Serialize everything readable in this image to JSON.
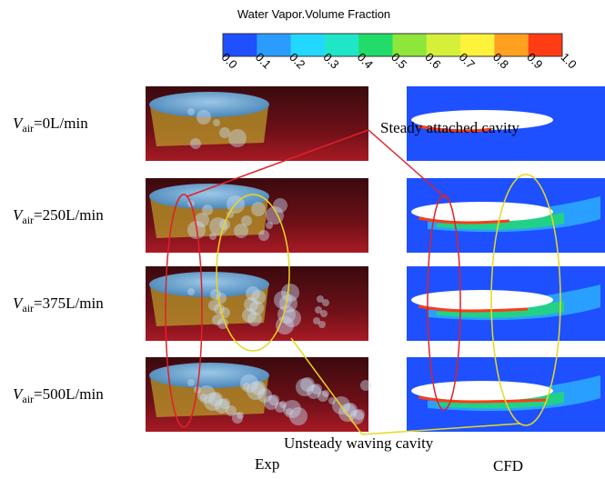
{
  "colorbar": {
    "title": "Water Vapor.Volume Fraction",
    "ticks": [
      "0.0",
      "0.1",
      "0.2",
      "0.3",
      "0.4",
      "0.5",
      "0.6",
      "0.7",
      "0.8",
      "0.9",
      "1.0"
    ],
    "colors": [
      "#1e50ff",
      "#2a9cff",
      "#22d8ff",
      "#20e6c8",
      "#22dc6a",
      "#8ee63a",
      "#d6f03a",
      "#fff23a",
      "#ffa020",
      "#ff3c14"
    ]
  },
  "rows": [
    {
      "symbol": "V",
      "subscript": "air",
      "value": "=0L/min"
    },
    {
      "symbol": "V",
      "subscript": "air",
      "value": "=250L/min"
    },
    {
      "symbol": "V",
      "subscript": "air",
      "value": "=375L/min"
    },
    {
      "symbol": "V",
      "subscript": "air",
      "value": "=500L/min"
    }
  ],
  "annotations": {
    "steady": "Steady attached cavity",
    "unsteady": "Unsteady waving cavity"
  },
  "columns": {
    "exp": "Exp",
    "cfd": "CFD"
  }
}
